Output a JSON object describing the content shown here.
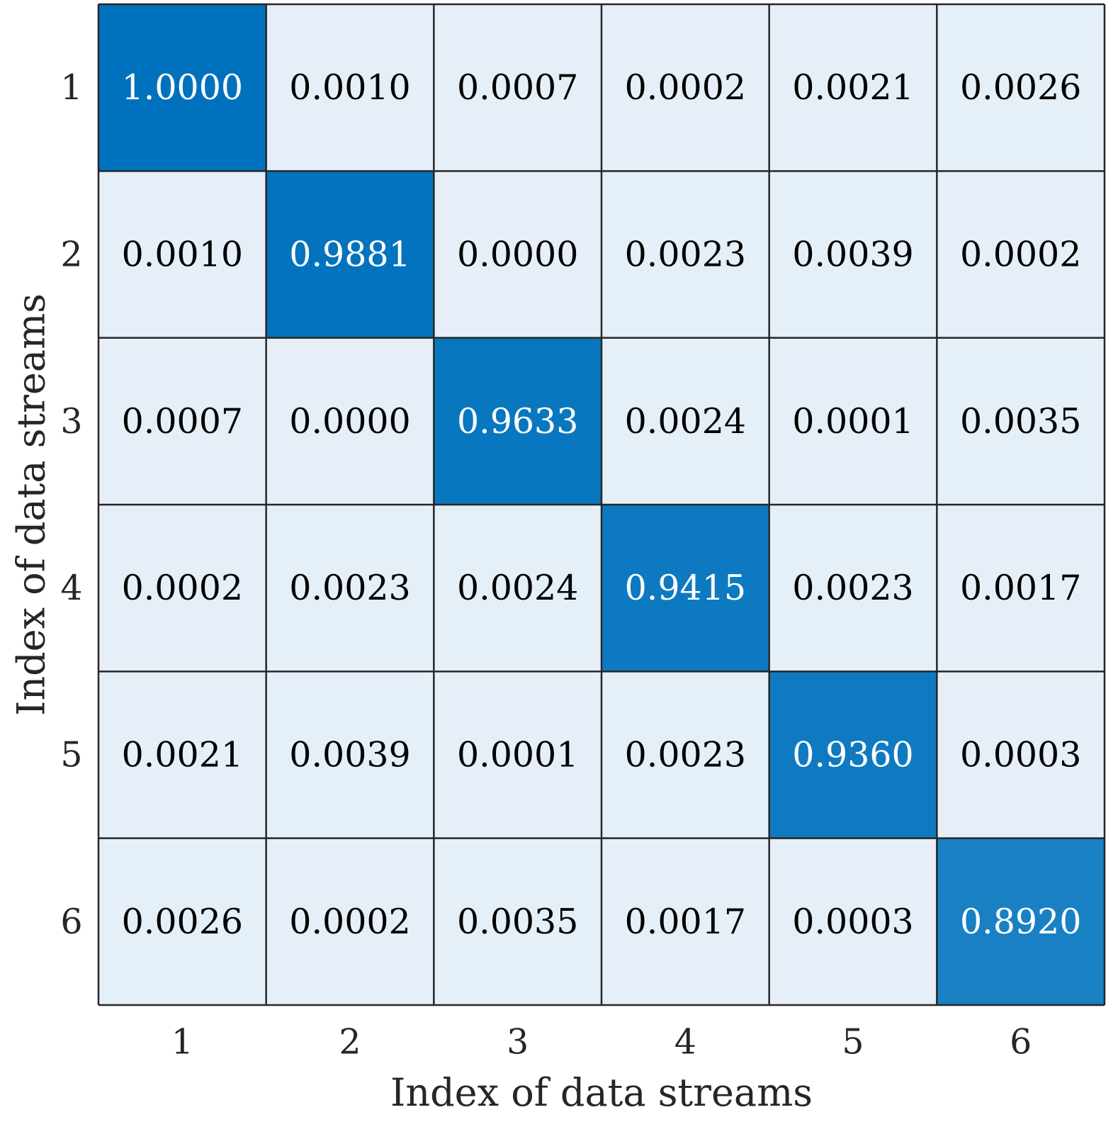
{
  "chart_data": {
    "type": "heatmap",
    "title": "",
    "xlabel": "Index of data streams",
    "ylabel": "Index of data streams",
    "x_categories": [
      "1",
      "2",
      "3",
      "4",
      "5",
      "6"
    ],
    "y_categories": [
      "1",
      "2",
      "3",
      "4",
      "5",
      "6"
    ],
    "values": [
      [
        "1.0000",
        "0.0010",
        "0.0007",
        "0.0002",
        "0.0021",
        "0.0026"
      ],
      [
        "0.0010",
        "0.9881",
        "0.0000",
        "0.0023",
        "0.0039",
        "0.0002"
      ],
      [
        "0.0007",
        "0.0000",
        "0.9633",
        "0.0024",
        "0.0001",
        "0.0035"
      ],
      [
        "0.0002",
        "0.0023",
        "0.0024",
        "0.9415",
        "0.0023",
        "0.0017"
      ],
      [
        "0.0021",
        "0.0039",
        "0.0001",
        "0.0023",
        "0.9360",
        "0.0003"
      ],
      [
        "0.0026",
        "0.0002",
        "0.0035",
        "0.0017",
        "0.0003",
        "0.8920"
      ]
    ],
    "colormap": {
      "low_color": "#e6eff8",
      "high_color": "#0072bd",
      "high_text_color": "#ffffff",
      "low_text_color": "#000000",
      "grid_color": "#262626"
    }
  }
}
